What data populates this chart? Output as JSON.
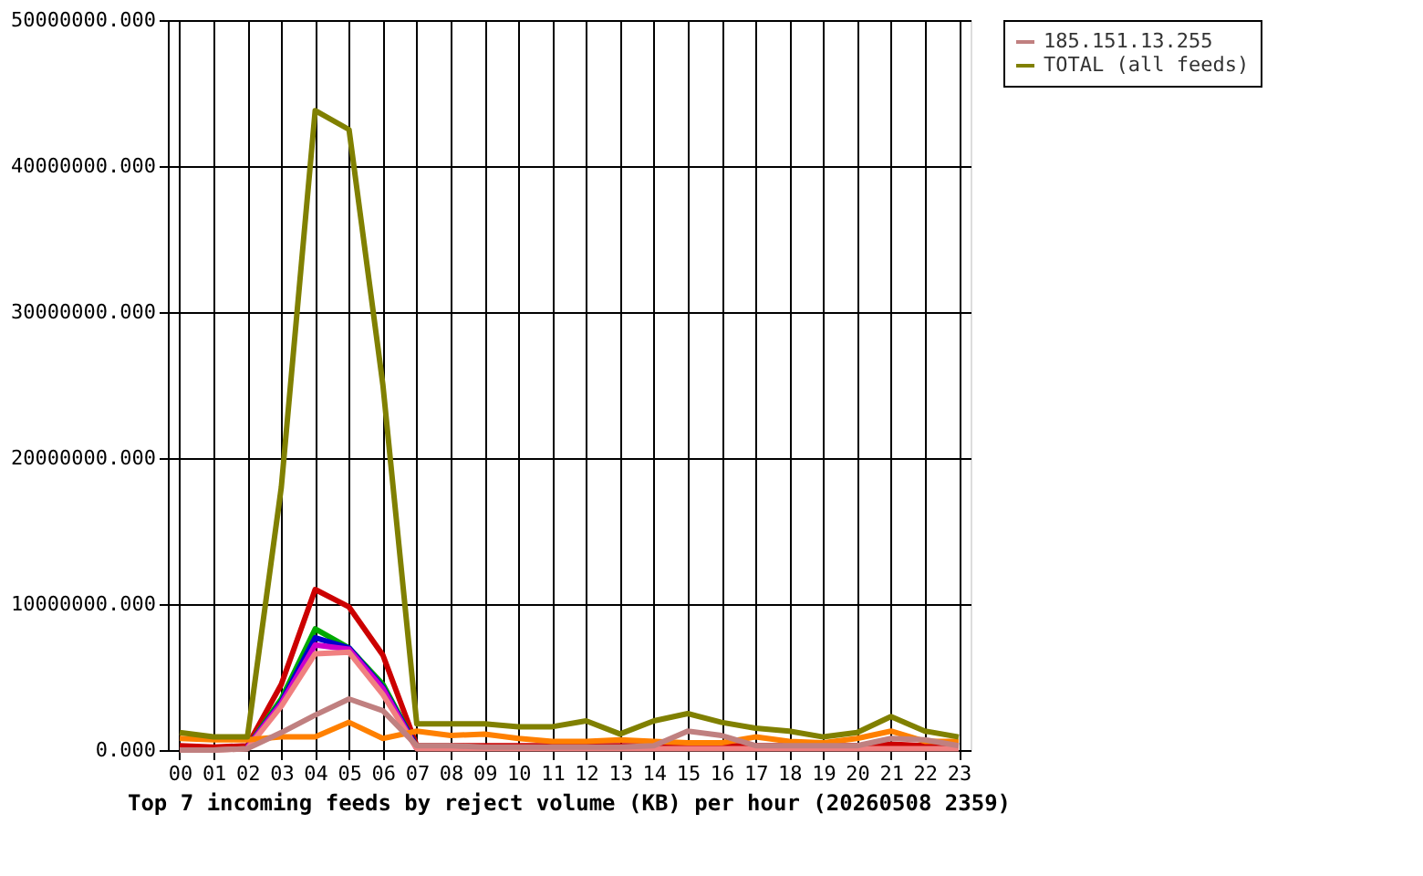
{
  "chart_data": {
    "type": "line",
    "title": "Top 7 incoming feeds by reject volume (KB) per hour (20260508 2359)",
    "categories": [
      "00",
      "01",
      "02",
      "03",
      "04",
      "05",
      "06",
      "07",
      "08",
      "09",
      "10",
      "11",
      "12",
      "13",
      "14",
      "15",
      "16",
      "17",
      "18",
      "19",
      "20",
      "21",
      "22",
      "23"
    ],
    "series": [
      {
        "color": "#cc0000",
        "values": [
          300000,
          200000,
          300000,
          4500000,
          11000000,
          9800000,
          6500000,
          300000,
          300000,
          300000,
          300000,
          300000,
          300000,
          300000,
          300000,
          300000,
          300000,
          300000,
          300000,
          300000,
          300000,
          400000,
          300000,
          300000
        ]
      },
      {
        "color": "#00aa00",
        "values": [
          null,
          null,
          200000,
          3500000,
          8300000,
          7000000,
          4500000,
          200000,
          null,
          null,
          null,
          null,
          null,
          null,
          null,
          null,
          null,
          null,
          null,
          null,
          null,
          null,
          null,
          null
        ]
      },
      {
        "color": "#0000cc",
        "values": [
          null,
          null,
          200000,
          3300000,
          7700000,
          7000000,
          4300000,
          200000,
          null,
          null,
          null,
          null,
          null,
          null,
          null,
          null,
          null,
          null,
          null,
          null,
          null,
          null,
          null,
          null
        ]
      },
      {
        "color": "#cc00cc",
        "values": [
          null,
          null,
          200000,
          3200000,
          7200000,
          6900000,
          4200000,
          100000,
          null,
          null,
          null,
          null,
          null,
          null,
          null,
          null,
          null,
          null,
          null,
          null,
          null,
          null,
          null,
          null
        ]
      },
      {
        "color": "#f08080",
        "values": [
          0,
          0,
          100000,
          3000000,
          6600000,
          6700000,
          3800000,
          100000,
          100000,
          100000,
          100000,
          100000,
          100000,
          100000,
          100000,
          100000,
          100000,
          100000,
          100000,
          100000,
          100000,
          100000,
          100000,
          100000
        ]
      },
      {
        "color": "#ff8000",
        "values": [
          800000,
          700000,
          700000,
          900000,
          900000,
          1900000,
          800000,
          1300000,
          1000000,
          1100000,
          800000,
          600000,
          600000,
          700000,
          600000,
          500000,
          500000,
          900000,
          600000,
          500000,
          800000,
          1300000,
          600000,
          600000
        ]
      },
      {
        "name": "185.151.13.255",
        "color": "#c08080",
        "values": [
          0,
          0,
          100000,
          1200000,
          2400000,
          3500000,
          2700000,
          300000,
          300000,
          200000,
          200000,
          200000,
          200000,
          200000,
          300000,
          1300000,
          1000000,
          300000,
          300000,
          300000,
          300000,
          800000,
          700000,
          300000
        ]
      },
      {
        "name": "TOTAL (all feeds)",
        "color": "#808000",
        "values": [
          1200000,
          900000,
          900000,
          18000000,
          43800000,
          42500000,
          25000000,
          1800000,
          1800000,
          1800000,
          1600000,
          1600000,
          2000000,
          1100000,
          2000000,
          2500000,
          1900000,
          1500000,
          1300000,
          900000,
          1200000,
          2300000,
          1300000,
          900000
        ]
      }
    ],
    "ylim": [
      0,
      50000000
    ],
    "yticks": [
      {
        "value": 0,
        "label": "0.000"
      },
      {
        "value": 10000000,
        "label": "10000000.000"
      },
      {
        "value": 20000000,
        "label": "20000000.000"
      },
      {
        "value": 30000000,
        "label": "30000000.000"
      },
      {
        "value": 40000000,
        "label": "40000000.000"
      },
      {
        "value": 50000000,
        "label": "50000000.000"
      }
    ],
    "grid": true,
    "legend": "top right",
    "marker": "none",
    "line_style": "solid"
  }
}
